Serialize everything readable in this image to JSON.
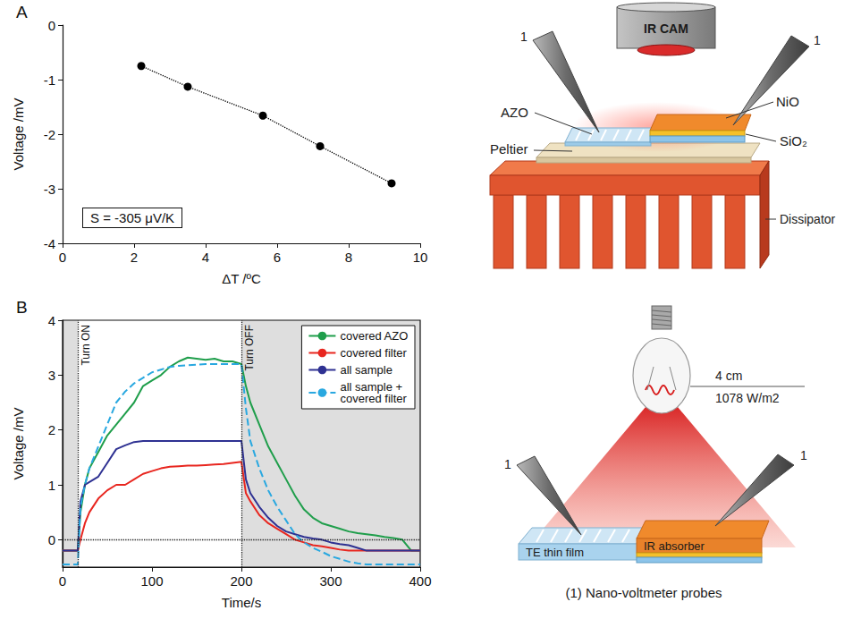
{
  "chart_data": [
    {
      "type": "line",
      "panel_label": "A",
      "xlabel": "ΔT /ºC",
      "ylabel": "Voltage /mV",
      "annotations": [
        {
          "text": "S = -305 μV/K"
        }
      ],
      "x": [
        2.2,
        3.5,
        5.6,
        7.2,
        9.2
      ],
      "series": [
        {
          "values": [
            -0.75,
            -1.13,
            -1.66,
            -2.22,
            -2.9
          ],
          "color": "#000000",
          "marker": "circle",
          "line_style": "dotted"
        }
      ],
      "xlim": [
        0,
        10
      ],
      "xticks": [
        0,
        2,
        4,
        6,
        8,
        10
      ],
      "ylim": [
        -4,
        0
      ],
      "yticks": [
        -4,
        -3,
        -2,
        -1,
        0
      ],
      "grid": false
    },
    {
      "type": "line",
      "panel_label": "B",
      "xlabel": "Time/s",
      "ylabel": "Voltage /mV",
      "annotations": [
        {
          "x": 17,
          "text": "Turn ON"
        },
        {
          "x": 200,
          "text": "Turn OFF"
        }
      ],
      "shaded": [
        [
          0,
          17
        ],
        [
          200,
          400
        ]
      ],
      "hlines": [
        0
      ],
      "x": [
        0,
        10,
        17,
        20,
        25,
        30,
        40,
        50,
        60,
        70,
        80,
        90,
        100,
        110,
        120,
        130,
        140,
        150,
        160,
        170,
        180,
        190,
        200,
        205,
        210,
        220,
        230,
        240,
        250,
        260,
        270,
        280,
        290,
        300,
        310,
        320,
        330,
        340,
        350,
        360,
        370,
        380,
        390,
        400
      ],
      "series": [
        {
          "name": "covered AZO",
          "color": "#1f9e4b",
          "line_style": "solid",
          "values": [
            -0.2,
            -0.2,
            -0.2,
            0.5,
            1.0,
            1.3,
            1.6,
            1.9,
            2.1,
            2.3,
            2.5,
            2.8,
            2.9,
            3.0,
            3.15,
            3.25,
            3.32,
            3.3,
            3.28,
            3.3,
            3.25,
            3.25,
            3.2,
            2.8,
            2.5,
            2.1,
            1.7,
            1.4,
            1.1,
            0.8,
            0.55,
            0.4,
            0.3,
            0.25,
            0.2,
            0.15,
            0.12,
            0.1,
            0.08,
            0.05,
            0.03,
            0.0,
            -0.2,
            -0.2
          ]
        },
        {
          "name": "covered filter",
          "color": "#e8261f",
          "line_style": "solid",
          "values": [
            -0.2,
            -0.2,
            -0.2,
            0.0,
            0.3,
            0.5,
            0.75,
            0.9,
            1.0,
            1.0,
            1.1,
            1.2,
            1.25,
            1.3,
            1.33,
            1.34,
            1.35,
            1.35,
            1.36,
            1.37,
            1.38,
            1.4,
            1.42,
            0.85,
            0.7,
            0.45,
            0.3,
            0.2,
            0.1,
            0.0,
            -0.05,
            -0.1,
            -0.12,
            -0.15,
            -0.18,
            -0.2,
            -0.2,
            -0.2,
            -0.2,
            -0.2,
            -0.2,
            -0.2,
            -0.2,
            -0.2
          ]
        },
        {
          "name": "all sample",
          "color": "#2e3192",
          "line_style": "solid",
          "values": [
            -0.2,
            -0.2,
            -0.2,
            0.7,
            1.0,
            1.05,
            1.15,
            1.4,
            1.65,
            1.72,
            1.78,
            1.8,
            1.8,
            1.8,
            1.8,
            1.8,
            1.8,
            1.8,
            1.8,
            1.8,
            1.8,
            1.8,
            1.8,
            1.1,
            0.85,
            0.6,
            0.4,
            0.25,
            0.15,
            0.1,
            0.05,
            0.02,
            0.0,
            -0.05,
            -0.08,
            -0.1,
            -0.15,
            -0.2,
            -0.2,
            -0.2,
            -0.2,
            -0.2,
            -0.2,
            -0.2
          ]
        },
        {
          "name": "all sample + covered filter",
          "color": "#29a8e0",
          "line_style": "dashed",
          "values": [
            -0.45,
            -0.45,
            -0.45,
            0.6,
            1.0,
            1.3,
            1.7,
            2.1,
            2.5,
            2.7,
            2.85,
            2.95,
            3.05,
            3.1,
            3.15,
            3.17,
            3.18,
            3.19,
            3.2,
            3.2,
            3.2,
            3.2,
            3.2,
            2.4,
            1.8,
            1.3,
            0.9,
            0.6,
            0.35,
            0.1,
            -0.05,
            -0.15,
            -0.22,
            -0.3,
            -0.35,
            -0.4,
            -0.43,
            -0.45,
            -0.45,
            -0.45,
            -0.45,
            -0.45,
            -0.45,
            -0.45
          ]
        }
      ],
      "xlim": [
        0,
        400
      ],
      "xticks": [
        0,
        100,
        200,
        300,
        400
      ],
      "ylim": [
        -0.5,
        4
      ],
      "yticks": [
        0,
        1,
        2,
        3,
        4
      ],
      "grid": false,
      "legend": "upper right"
    }
  ],
  "diagrams": [
    {
      "labels": {
        "camera": "IR CAM",
        "probe_left": "1",
        "probe_right": "1",
        "azo": "AZO",
        "nio": "NiO",
        "sio2": "SiO₂",
        "peltier": "Peltier",
        "dissipator": "Dissipator"
      }
    },
    {
      "labels": {
        "distance": "4 cm",
        "irradiance": "1078 W/m2",
        "probe_left": "1",
        "probe_right": "1",
        "te_film": "TE thin film",
        "ir_absorber": "IR absorber",
        "caption": "(1) Nano-voltmeter probes"
      }
    }
  ]
}
